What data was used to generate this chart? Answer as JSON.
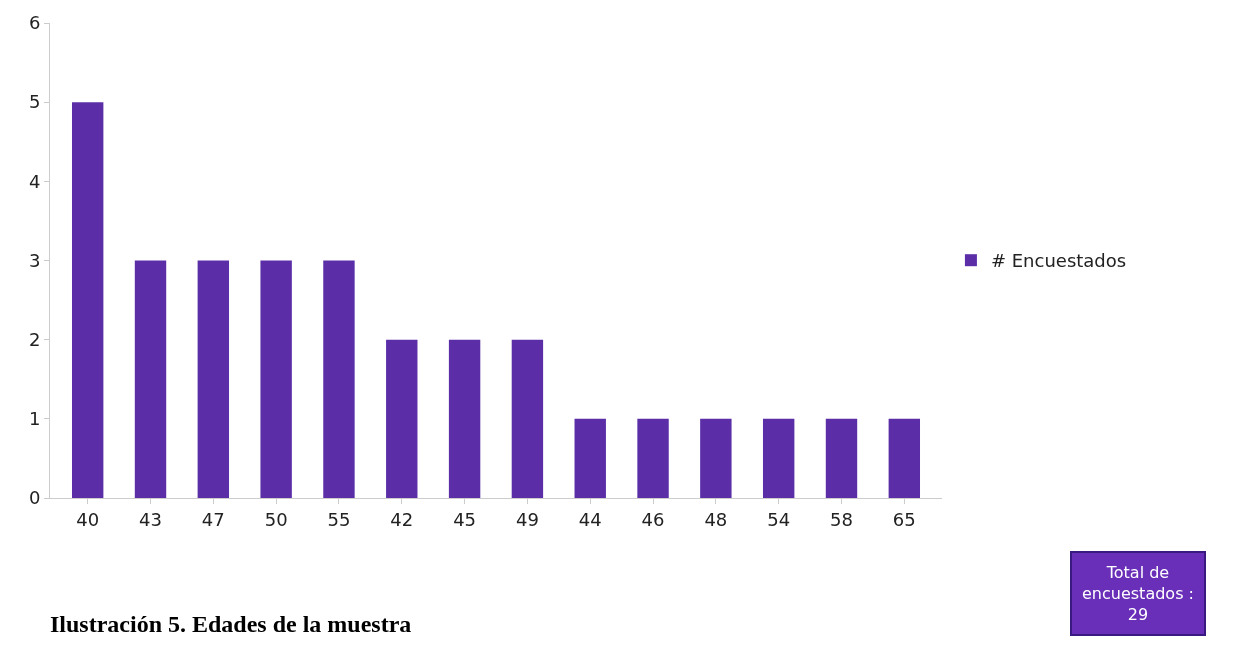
{
  "chart_data": {
    "type": "bar",
    "title": "Ilustración 5. Edades de la muestra",
    "categories": [
      "40",
      "43",
      "47",
      "50",
      "55",
      "42",
      "45",
      "49",
      "44",
      "46",
      "48",
      "54",
      "58",
      "65"
    ],
    "series": [
      {
        "name": "# Encuestados",
        "color": "#5b2ea8",
        "values": [
          5,
          3,
          3,
          3,
          3,
          2,
          2,
          2,
          1,
          1,
          1,
          1,
          1,
          1
        ]
      }
    ],
    "ylim": [
      0,
      6
    ],
    "yticks": [
      0,
      1,
      2,
      3,
      4,
      5,
      6
    ],
    "legend": "right",
    "annotations": [
      "Total de\nencuestados :\n29"
    ]
  }
}
